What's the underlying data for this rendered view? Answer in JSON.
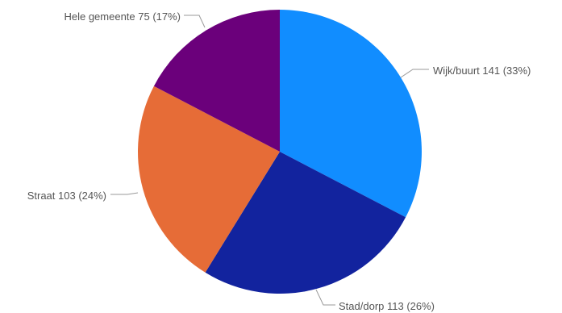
{
  "chart_data": {
    "type": "pie",
    "start_angle_deg": 0,
    "direction": "clockwise",
    "legend": "none",
    "slices": [
      {
        "label": "Wijk/buurt",
        "value": 141,
        "percent": "33%",
        "color": "#118DFF"
      },
      {
        "label": "Stad/dorp",
        "value": 113,
        "percent": "26%",
        "color": "#12239E"
      },
      {
        "label": "Straat",
        "value": 103,
        "percent": "24%",
        "color": "#E66C37"
      },
      {
        "label": "Hele gemeente",
        "value": 75,
        "percent": "17%",
        "color": "#6B007B"
      }
    ]
  }
}
